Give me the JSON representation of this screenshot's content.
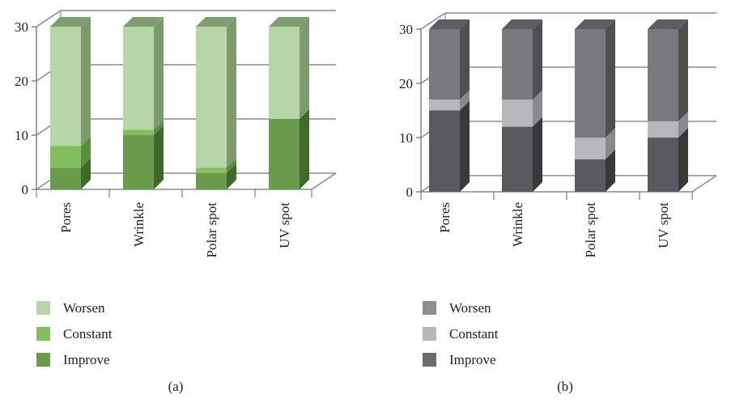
{
  "chart_data": [
    {
      "type": "bar",
      "stacked": true,
      "three_d": true,
      "panel_label": "(a)",
      "categories": [
        "Pores",
        "Wrinkle",
        "Polar spot",
        "UV spot"
      ],
      "ylim": [
        0,
        30
      ],
      "yticks": [
        0,
        10,
        20,
        30
      ],
      "grid": true,
      "legend_position": "bottom-left",
      "series": [
        {
          "name": "Improve",
          "values": [
            4,
            10,
            3,
            13
          ],
          "color": "#6a9a4c",
          "side": "#3f6a2b",
          "top": "#88b46a"
        },
        {
          "name": "Constant",
          "values": [
            4,
            1,
            1,
            0
          ],
          "color": "#82c05e",
          "side": "#5a8f3c",
          "top": "#9fd27d"
        },
        {
          "name": "Worsen",
          "values": [
            22,
            19,
            26,
            17
          ],
          "color": "#b7d6a7",
          "side": "#7e9b6e",
          "top": "#7f9d73"
        }
      ]
    },
    {
      "type": "bar",
      "stacked": true,
      "three_d": true,
      "panel_label": "(b)",
      "categories": [
        "Pores",
        "Wrinkle",
        "Polar spot",
        "UV spot"
      ],
      "ylim": [
        0,
        30
      ],
      "yticks": [
        0,
        10,
        20,
        30
      ],
      "grid": true,
      "legend_position": "bottom-left",
      "series": [
        {
          "name": "Improve",
          "values": [
            15,
            12,
            6,
            10
          ],
          "color": "#5a5a5e",
          "side": "#38383b",
          "top": "#6e6e72"
        },
        {
          "name": "Constant",
          "values": [
            2,
            5,
            4,
            3
          ],
          "color": "#b8b8bb",
          "side": "#8a8a8d",
          "top": "#c8c8ca"
        },
        {
          "name": "Worsen",
          "values": [
            13,
            13,
            20,
            17
          ],
          "color": "#79797d",
          "side": "#4f4f52",
          "top": "#5e5e62"
        }
      ],
      "legend_colors": {
        "Worsen": "#8e8e92",
        "Constant": "#b8b8bb",
        "Improve": "#6c6c70"
      }
    }
  ]
}
